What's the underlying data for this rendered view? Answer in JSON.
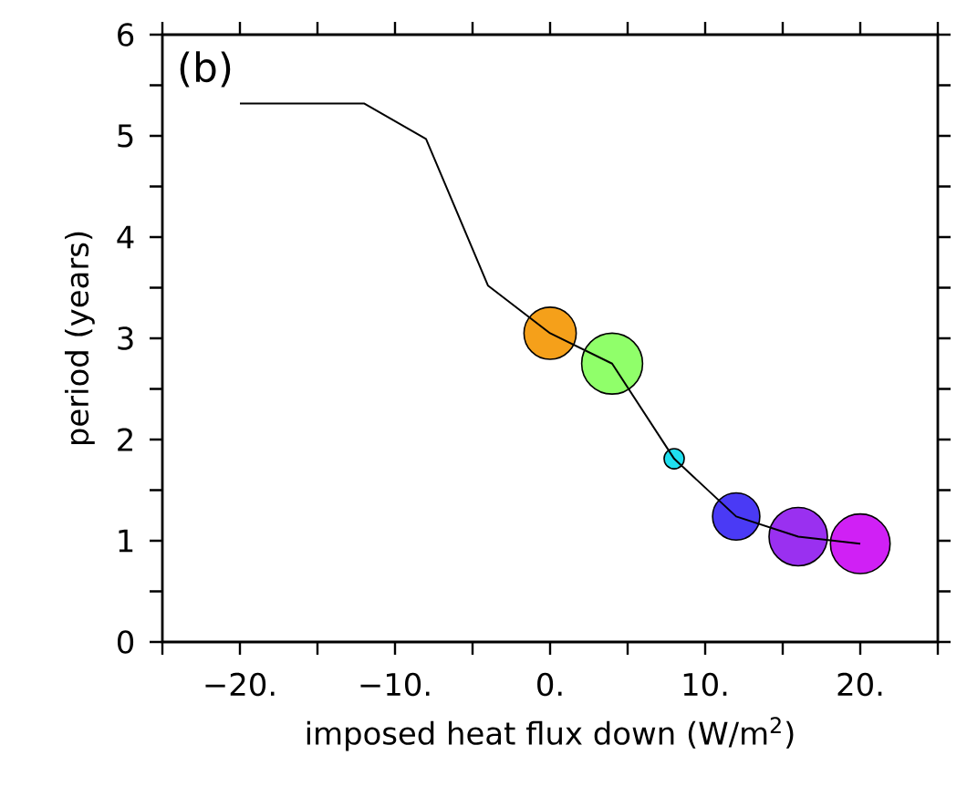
{
  "chart_data": {
    "type": "bubble",
    "xlabel": "imposed heat flux down (W/m$^{2}$)",
    "ylabel": "period (years)",
    "annotations": [
      "(b)"
    ],
    "xlim": [
      -25,
      25
    ],
    "ylim": [
      0,
      6
    ],
    "xticks": [
      {
        "value": -25,
        "label": null
      },
      {
        "value": -20,
        "label": "−20."
      },
      {
        "value": -15,
        "label": null
      },
      {
        "value": -10,
        "label": "−10."
      },
      {
        "value": -5,
        "label": null
      },
      {
        "value": 0,
        "label": "0."
      },
      {
        "value": 5,
        "label": null
      },
      {
        "value": 10,
        "label": "10."
      },
      {
        "value": 15,
        "label": null
      },
      {
        "value": 20,
        "label": "20."
      },
      {
        "value": 25,
        "label": null
      }
    ],
    "yticks": [
      0,
      {
        "value": 0.5,
        "label": null
      },
      1,
      {
        "value": 1.5,
        "label": null
      },
      2,
      {
        "value": 2.5,
        "label": null
      },
      3,
      {
        "value": 3.5,
        "label": null
      },
      4,
      {
        "value": 4.5,
        "label": null
      },
      5,
      {
        "value": 5.5,
        "label": null
      },
      6
    ],
    "grid": false,
    "series": [
      {
        "type": "line",
        "color": "#000000",
        "x": [
          -20,
          -12,
          -8,
          -4,
          0,
          4,
          8,
          12,
          16,
          20
        ],
        "values": [
          5.32,
          5.32,
          4.97,
          3.52,
          3.05,
          2.75,
          1.81,
          1.24,
          1.04,
          0.97
        ]
      },
      {
        "x": [
          0,
          4,
          8,
          12,
          16,
          20
        ],
        "values": [
          3.05,
          2.75,
          1.81,
          1.24,
          1.04,
          0.97
        ],
        "sizes": [
          0.74,
          1,
          0.12,
          0.61,
          0.92,
          0.96
        ],
        "colors": [
          "#f5a01a",
          "#90ff6a",
          "#20e0f0",
          "#4a3af5",
          "#9a30f0",
          "#d020f5"
        ]
      }
    ]
  }
}
